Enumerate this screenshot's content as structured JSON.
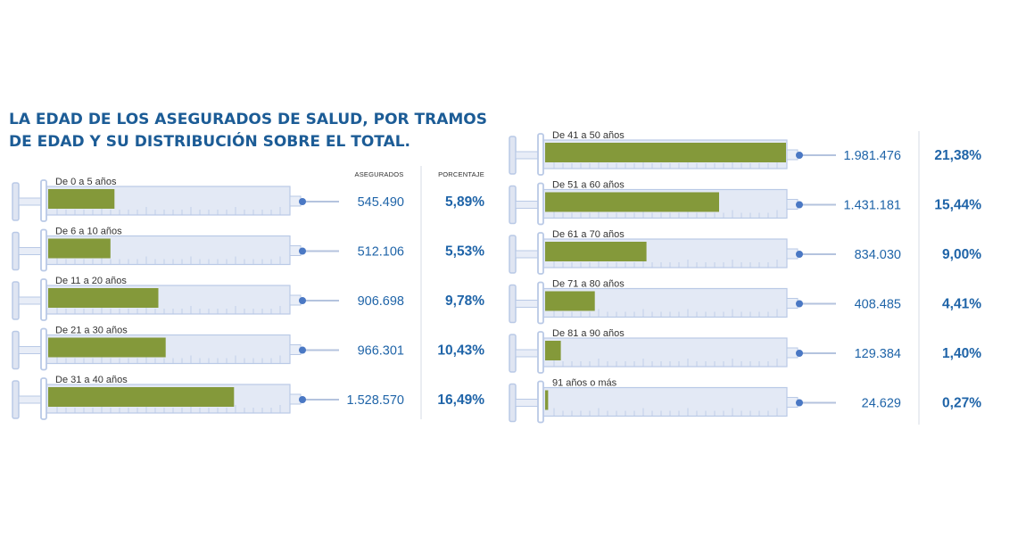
{
  "title_lines": [
    "LA EDAD DE LOS ASEGURADOS DE SALUD, POR TRAMOS",
    "DE EDAD Y SU DISTRIBUCIÓN SOBRE EL TOTAL."
  ],
  "headers": {
    "asegurados": "ASEGURADOS",
    "porcentaje": "PORCENTAJE"
  },
  "colors": {
    "title": "#1c5c96",
    "fill": "#84993a",
    "barrel": "#e3e9f5",
    "syringe_line": "#b9c9e6",
    "needle_tip": "#4a78c4",
    "value_text": "#1f64a8"
  },
  "chart_data": {
    "type": "bar",
    "title": "LA EDAD DE LOS ASEGURADOS DE SALUD, POR TRAMOS DE EDAD Y SU DISTRIBUCIÓN SOBRE EL TOTAL.",
    "categories": [
      "De 0 a 5 años",
      "De 6 a 10 años",
      "De 11 a 20 años",
      "De 21 a 30 años",
      "De 31 a 40 años",
      "De 41 a 50 años",
      "De 51 a 60 años",
      "De 61 a 70 años",
      "De 71 a 80 años",
      "De 81 a 90 años",
      "91 años o más"
    ],
    "series": [
      {
        "name": "ASEGURADOS",
        "values": [
          545490,
          512106,
          906698,
          966301,
          1528570,
          1981476,
          1431181,
          834030,
          408485,
          129384,
          24629
        ]
      },
      {
        "name": "PORCENTAJE",
        "values": [
          5.89,
          5.53,
          9.78,
          10.43,
          16.49,
          21.38,
          15.44,
          9.0,
          4.41,
          1.4,
          0.27
        ]
      }
    ],
    "value_labels": [
      "545.490",
      "512.106",
      "906.698",
      "966.301",
      "1.528.570",
      "1.981.476",
      "1.431.181",
      "834.030",
      "408.485",
      "129.384",
      "24.629"
    ],
    "percent_labels": [
      "5,89%",
      "5,53%",
      "9,78%",
      "10,43%",
      "16,49%",
      "21,38%",
      "15,44%",
      "9,00%",
      "4,41%",
      "1,40%",
      "0,27%"
    ],
    "layout": "two columns of syringes, 5 left and 6 right; fill level of each syringe proportional to the number of insured"
  }
}
